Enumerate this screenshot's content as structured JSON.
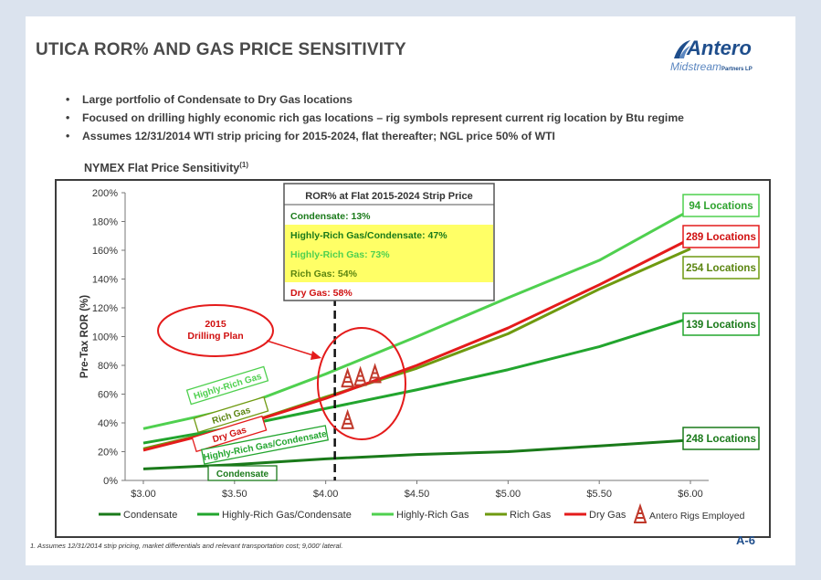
{
  "title": "UTICA ROR% AND GAS PRICE SENSITIVITY",
  "logo": {
    "top": "Antero",
    "bottom": "Midstream",
    "suffix": "Partners LP"
  },
  "bullets": [
    "Large portfolio of Condensate to Dry Gas locations",
    "Focused on drilling highly economic rich gas locations – rig symbols represent current rig location by Btu regime",
    "Assumes 12/31/2014 WTI strip pricing for 2015-2024, flat thereafter; NGL price 50% of WTI"
  ],
  "chart_title": "NYMEX Flat Price Sensitivity",
  "chart_title_sup": "(1)",
  "footnote": "1.  Assumes 12/31/2014 strip pricing, market differentials and relevant transportation cost; 9,000’ lateral.",
  "page_number": "A-6",
  "colors": {
    "Condensate": "#1a7a1a",
    "Highly-Rich Gas/Condensate": "#22a52e",
    "Highly-Rich Gas": "#4fd04f",
    "Rich Gas": "#6f9a10",
    "Dry Gas": "#e41b1b",
    "highlight": "#ffff66",
    "circle": "#e41b1b"
  },
  "chart_data": {
    "type": "line",
    "xlabel": "",
    "ylabel": "Pre-Tax ROR (%)",
    "x": [
      3.0,
      3.5,
      4.0,
      4.5,
      5.0,
      5.5,
      6.0
    ],
    "x_tick_labels": [
      "$3.00",
      "$3.50",
      "$4.00",
      "$4.50",
      "$5.00",
      "$5.50",
      "$6.00"
    ],
    "y_tick_labels": [
      "0%",
      "20%",
      "40%",
      "60%",
      "80%",
      "100%",
      "120%",
      "140%",
      "160%",
      "180%",
      "200%"
    ],
    "xlim": [
      2.9,
      6.1
    ],
    "ylim": [
      0,
      200
    ],
    "grid": false,
    "legend_placement": "bottom",
    "series": [
      {
        "name": "Condensate",
        "values": [
          8,
          11,
          15,
          18,
          20,
          24,
          28
        ],
        "end_label": "248 Locations"
      },
      {
        "name": "Highly-Rich Gas/Condensate",
        "values": [
          26,
          37,
          50,
          63,
          77,
          93,
          113
        ],
        "end_label": "139 Locations"
      },
      {
        "name": "Highly-Rich Gas",
        "values": [
          36,
          50,
          74,
          100,
          127,
          153,
          188
        ],
        "end_label": "94 Locations"
      },
      {
        "name": "Rich Gas",
        "values": [
          22,
          37,
          58,
          78,
          102,
          133,
          161
        ],
        "end_label": "254 Locations"
      },
      {
        "name": "Dry Gas",
        "values": [
          21,
          37,
          57,
          80,
          106,
          136,
          168
        ],
        "end_label": "289 Locations"
      }
    ],
    "legend_extra": "Antero Rigs Employed",
    "current_price_marker": 4.05,
    "ror_box": {
      "title": "ROR% at Flat 2015-2024 Strip Price",
      "rows": [
        {
          "text": "Condensate: 13%",
          "series": "Condensate",
          "highlight": false
        },
        {
          "text": "Highly-Rich Gas/Condensate: 47%",
          "series": "Highly-Rich Gas/Condensate",
          "highlight": true
        },
        {
          "text": "Highly-Rich Gas: 73%",
          "series": "Highly-Rich Gas",
          "highlight": true
        },
        {
          "text": "Rich Gas: 54%",
          "series": "Rich Gas",
          "highlight": true
        },
        {
          "text": "Dry Gas: 58%",
          "series": "Dry Gas",
          "highlight": false
        }
      ]
    },
    "annotation": {
      "text_line1": "2015",
      "text_line2": "Drilling Plan"
    },
    "rotated_labels": [
      {
        "text": "Highly-Rich Gas",
        "series": "Highly-Rich Gas",
        "x": 3.4,
        "y": 64
      },
      {
        "text": "Rich Gas",
        "series": "Rich Gas",
        "x": 3.45,
        "y": 46
      },
      {
        "text": "Dry Gas",
        "series": "Dry Gas",
        "x": 3.42,
        "y": 33
      },
      {
        "text": "Highly-Rich Gas/Condensate",
        "series": "Highly-Rich Gas/Condensate",
        "x": 3.58,
        "y": 22
      },
      {
        "text": "Condensate",
        "series": "Condensate",
        "x": 3.58,
        "y": 5
      }
    ],
    "rigs": [
      {
        "x": 4.12,
        "y": 71
      },
      {
        "x": 4.19,
        "y": 72
      },
      {
        "x": 4.27,
        "y": 74
      },
      {
        "x": 4.12,
        "y": 42
      }
    ]
  }
}
